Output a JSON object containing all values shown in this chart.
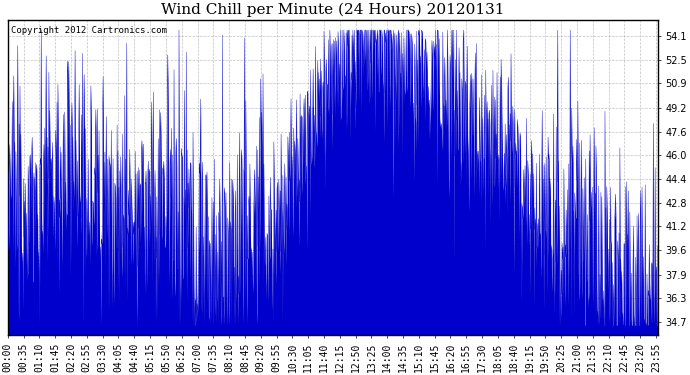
{
  "title": "Wind Chill per Minute (24 Hours) 20120131",
  "copyright": "Copyright 2012 Cartronics.com",
  "line_color": "#0000cc",
  "fill_color": "#0000cc",
  "background_color": "#ffffff",
  "grid_color": "#999999",
  "ylim_min": 33.8,
  "ylim_max": 55.2,
  "yticks": [
    34.7,
    36.3,
    37.9,
    39.6,
    41.2,
    42.8,
    44.4,
    46.0,
    47.6,
    49.2,
    50.9,
    52.5,
    54.1
  ],
  "title_fontsize": 11,
  "tick_fontsize": 7,
  "copyright_fontsize": 6.5,
  "xtick_interval": 35
}
